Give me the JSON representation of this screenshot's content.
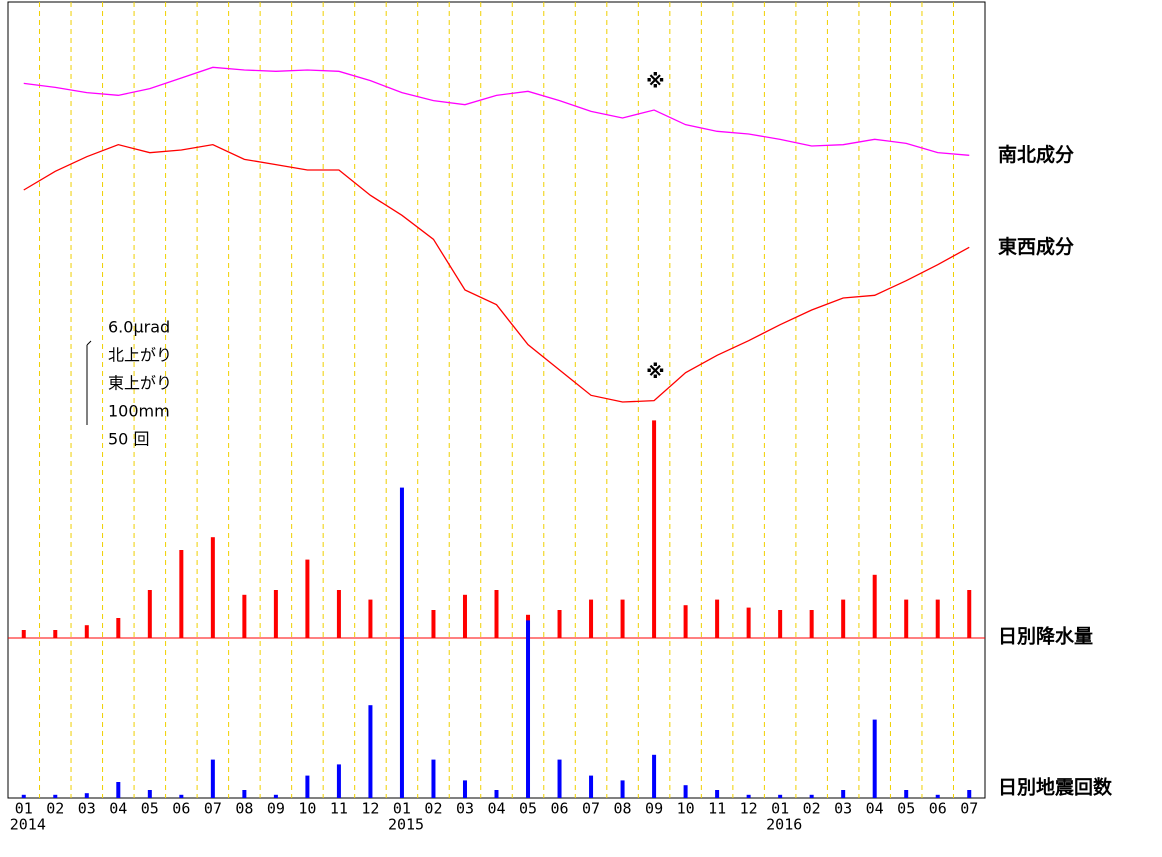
{
  "chart_data": {
    "type": "tilt-monitor",
    "categories": [
      "01",
      "02",
      "03",
      "04",
      "05",
      "06",
      "07",
      "08",
      "09",
      "10",
      "11",
      "12",
      "01",
      "02",
      "03",
      "04",
      "05",
      "06",
      "07",
      "08",
      "09",
      "10",
      "11",
      "12",
      "01",
      "02",
      "03",
      "04",
      "05",
      "06",
      "07"
    ],
    "years": [
      "2014",
      "2015",
      "2016"
    ],
    "series": [
      {
        "name": "南北成分",
        "color": "#ff00ff",
        "kind": "line",
        "values": [
          12.5,
          12.2,
          11.8,
          11.6,
          12.1,
          12.9,
          13.7,
          13.5,
          13.4,
          13.5,
          13.4,
          12.7,
          11.8,
          11.2,
          10.9,
          11.6,
          11.9,
          11.2,
          10.4,
          9.9,
          10.5,
          9.4,
          8.9,
          8.7,
          8.3,
          7.8,
          7.9,
          8.3,
          8.0,
          7.3,
          7.1
        ]
      },
      {
        "name": "東西成分",
        "color": "#ff0000",
        "kind": "line",
        "values": [
          4.5,
          5.9,
          7.0,
          7.9,
          7.3,
          7.5,
          7.9,
          6.8,
          6.4,
          6.0,
          6.0,
          4.1,
          2.6,
          0.8,
          -3.0,
          -4.1,
          -7.1,
          -9.0,
          -10.9,
          -11.4,
          -11.3,
          -9.2,
          -7.9,
          -6.8,
          -5.6,
          -4.5,
          -3.6,
          -3.4,
          -2.3,
          -1.1,
          0.2
        ]
      },
      {
        "name": "日別降水量",
        "color": "#ff0000",
        "kind": "rain",
        "values": [
          10,
          10,
          16,
          25,
          60,
          110,
          126,
          54,
          60,
          98,
          60,
          48,
          4,
          35,
          54,
          60,
          29,
          35,
          48,
          48,
          272,
          41,
          48,
          38,
          35,
          35,
          48,
          79,
          48,
          48,
          60
        ]
      },
      {
        "name": "日別地震回数",
        "color": "#0000ff",
        "kind": "quake",
        "values": [
          2,
          2,
          3,
          10,
          5,
          2,
          24,
          5,
          2,
          14,
          21,
          58,
          194,
          24,
          11,
          5,
          111,
          24,
          14,
          11,
          27,
          8,
          5,
          2,
          2,
          2,
          5,
          49,
          5,
          2,
          5
        ]
      }
    ],
    "scale_labels": [
      "6.0μrad",
      "北上がり",
      "東上がり",
      "100mm",
      "50 回"
    ],
    "scales": {
      "tilt": 6.0,
      "rain": 100,
      "quake": 50
    },
    "annotations": [
      "※",
      "※"
    ],
    "grid_color": "#f0d000"
  }
}
